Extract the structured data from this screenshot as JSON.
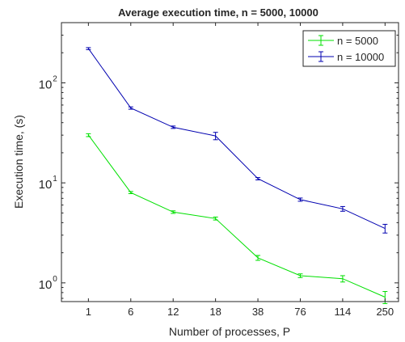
{
  "chart_data": {
    "type": "line",
    "title": "Average execution time, n = 5000, 10000",
    "xlabel": "Number of processes, P",
    "ylabel": "Execution time, (s)",
    "yscale": "log",
    "ylim": [
      0.65,
      400
    ],
    "grid": false,
    "legend_position": "top-right",
    "categories": [
      "1",
      "6",
      "12",
      "18",
      "38",
      "76",
      "114",
      "250"
    ],
    "y_ticks": [
      {
        "value": 1,
        "label": "10",
        "exp": "0"
      },
      {
        "value": 10,
        "label": "10",
        "exp": "1"
      },
      {
        "value": 100,
        "label": "10",
        "exp": "2"
      }
    ],
    "series": [
      {
        "name": "n = 5000",
        "color": "#00e000",
        "values": [
          30.0,
          8.0,
          5.1,
          4.4,
          1.78,
          1.18,
          1.1,
          0.72
        ],
        "errors": [
          1.0,
          0.2,
          0.15,
          0.15,
          0.1,
          0.05,
          0.08,
          0.1
        ]
      },
      {
        "name": "n = 10000",
        "color": "#0000b0",
        "values": [
          220,
          56,
          36,
          29.5,
          11.0,
          6.8,
          5.5,
          3.5
        ],
        "errors": [
          5,
          1.5,
          1.0,
          2.5,
          0.3,
          0.25,
          0.3,
          0.35
        ]
      }
    ]
  }
}
